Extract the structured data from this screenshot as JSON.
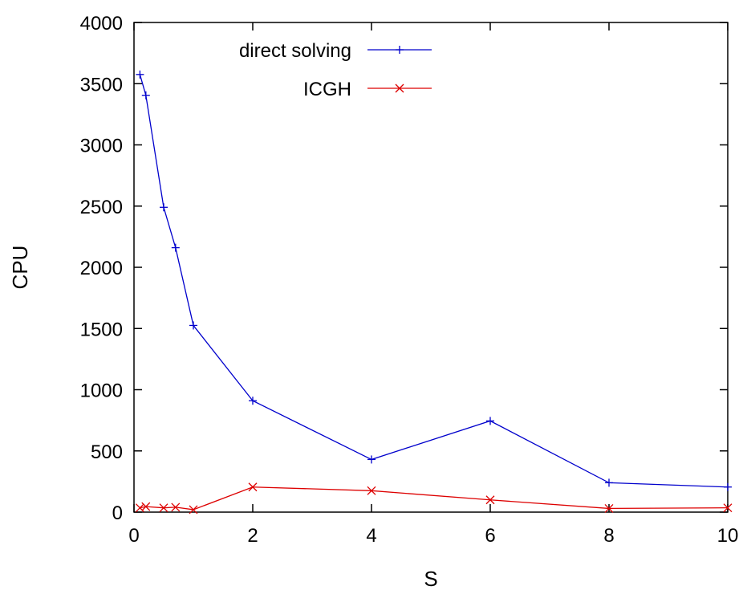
{
  "chart_data": {
    "type": "line",
    "title": "",
    "xlabel": "S",
    "ylabel": "CPU",
    "xlim": [
      0,
      10
    ],
    "ylim": [
      0,
      4000
    ],
    "xticks": [
      0,
      2,
      4,
      6,
      8,
      10
    ],
    "yticks": [
      0,
      500,
      1000,
      1500,
      2000,
      2500,
      3000,
      3500,
      4000
    ],
    "grid": false,
    "legend_position": "top-right",
    "series": [
      {
        "name": "direct solving",
        "color": "#0000cc",
        "marker": "plus",
        "x": [
          0.1,
          0.2,
          0.5,
          0.7,
          1,
          2,
          4,
          6,
          8,
          10
        ],
        "y": [
          3575,
          3405,
          2490,
          2160,
          1525,
          910,
          430,
          745,
          240,
          205
        ]
      },
      {
        "name": "ICGH",
        "color": "#dd0000",
        "marker": "cross",
        "x": [
          0.1,
          0.2,
          0.5,
          0.7,
          1,
          2,
          4,
          6,
          8,
          10
        ],
        "y": [
          35,
          45,
          35,
          40,
          20,
          205,
          175,
          100,
          30,
          35
        ]
      }
    ]
  }
}
